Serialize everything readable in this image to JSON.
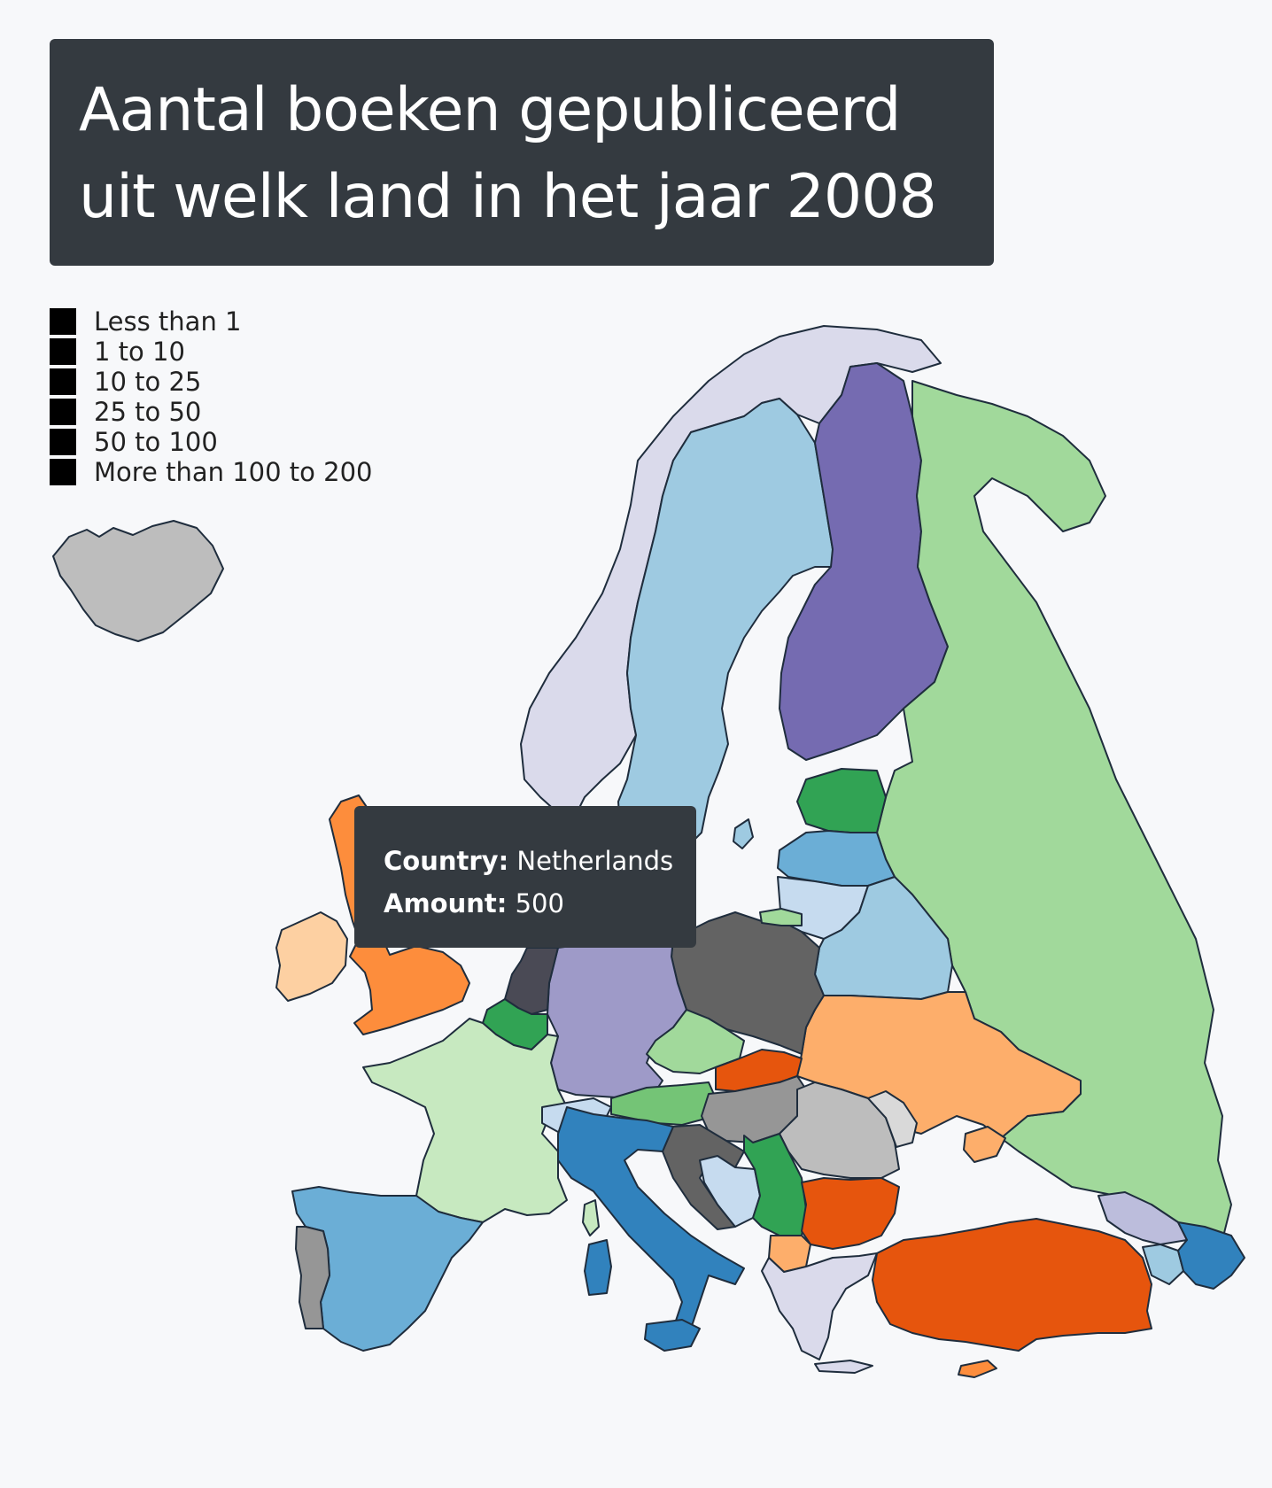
{
  "title": {
    "line1": "Aantal boeken gepubliceerd",
    "line2": "uit welk land in het jaar 2008"
  },
  "legend": {
    "items": [
      {
        "label": "Less than 1",
        "color": "#000000"
      },
      {
        "label": "1 to 10",
        "color": "#000000"
      },
      {
        "label": "10 to 25",
        "color": "#000000"
      },
      {
        "label": "25 to 50",
        "color": "#000000"
      },
      {
        "label": "50 to 100",
        "color": "#000000"
      },
      {
        "label": "More than 100 to 200",
        "color": "#000000"
      }
    ]
  },
  "tooltip": {
    "country_key": "Country:",
    "country_value": "Netherlands",
    "amount_key": "Amount:",
    "amount_value": "500"
  },
  "countries": [
    {
      "name": "Iceland",
      "color": "#bdbdbd"
    },
    {
      "name": "Norway",
      "color": "#dadaeb"
    },
    {
      "name": "Sweden",
      "color": "#9ecae1"
    },
    {
      "name": "Finland",
      "color": "#756bb1"
    },
    {
      "name": "Russia",
      "color": "#a1d99b"
    },
    {
      "name": "Estonia",
      "color": "#31a354"
    },
    {
      "name": "Latvia",
      "color": "#6baed6"
    },
    {
      "name": "Lithuania",
      "color": "#c6dbef"
    },
    {
      "name": "Belarus",
      "color": "#9ecae1"
    },
    {
      "name": "Ukraine",
      "color": "#fdae6b"
    },
    {
      "name": "Poland",
      "color": "#636363"
    },
    {
      "name": "Germany",
      "color": "#9e9ac8"
    },
    {
      "name": "Netherlands",
      "color": "#4a4a55"
    },
    {
      "name": "Belgium",
      "color": "#31a354"
    },
    {
      "name": "France",
      "color": "#c7e9c0"
    },
    {
      "name": "United Kingdom",
      "color": "#fd8d3c"
    },
    {
      "name": "Ireland",
      "color": "#fdd0a2"
    },
    {
      "name": "Spain",
      "color": "#6baed6"
    },
    {
      "name": "Portugal",
      "color": "#969696"
    },
    {
      "name": "Switzerland",
      "color": "#c6dbef"
    },
    {
      "name": "Italy",
      "color": "#3182bd"
    },
    {
      "name": "Austria",
      "color": "#74c476"
    },
    {
      "name": "Czechia",
      "color": "#a1d99b"
    },
    {
      "name": "Slovakia",
      "color": "#e6550d"
    },
    {
      "name": "Hungary",
      "color": "#969696"
    },
    {
      "name": "Romania",
      "color": "#bdbdbd"
    },
    {
      "name": "Moldova",
      "color": "#d9d9d9"
    },
    {
      "name": "Bulgaria",
      "color": "#e6550d"
    },
    {
      "name": "Serbia",
      "color": "#31a354"
    },
    {
      "name": "Croatia",
      "color": "#636363"
    },
    {
      "name": "Bosnia",
      "color": "#c6dbef"
    },
    {
      "name": "Greece",
      "color": "#dadaeb"
    },
    {
      "name": "North Macedonia",
      "color": "#fdae6b"
    },
    {
      "name": "Turkey",
      "color": "#e6550d"
    },
    {
      "name": "Georgia",
      "color": "#bcbddc"
    },
    {
      "name": "Armenia",
      "color": "#9ecae1"
    },
    {
      "name": "Azerbaijan",
      "color": "#3182bd"
    },
    {
      "name": "Cyprus",
      "color": "#fd8d3c"
    }
  ]
}
